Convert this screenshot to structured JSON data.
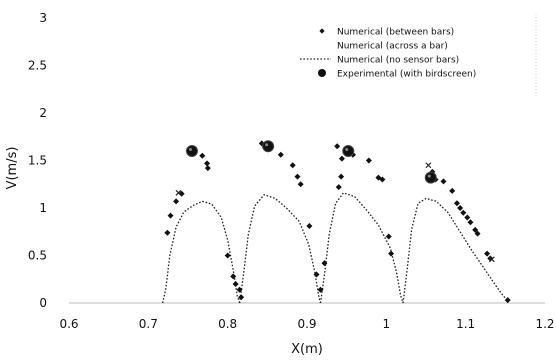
{
  "chart_data": {
    "type": "scatter",
    "xlabel": "X(m)",
    "ylabel": "V(m/s)",
    "xlim": [
      0.6,
      1.2
    ],
    "ylim": [
      0,
      3
    ],
    "xticks": [
      "0.6",
      "0.7",
      "0.8",
      "0.9",
      "1",
      "1.1",
      "1.2"
    ],
    "yticks": [
      "0",
      "0.5",
      "1",
      "1.5",
      "2",
      "2.5",
      "3"
    ],
    "grid": false,
    "legend_position": "top-right",
    "series": [
      {
        "name": "Numerical (between bars)",
        "marker": "diamond",
        "color": "#111111",
        "points": [
          [
            0.724,
            0.74
          ],
          [
            0.728,
            0.92
          ],
          [
            0.735,
            1.07
          ],
          [
            0.742,
            1.15
          ],
          [
            0.768,
            1.55
          ],
          [
            0.774,
            1.47
          ],
          [
            0.775,
            1.42
          ],
          [
            0.8,
            0.5
          ],
          [
            0.807,
            0.28
          ],
          [
            0.81,
            0.2
          ],
          [
            0.815,
            0.14
          ],
          [
            0.817,
            0.06
          ],
          [
            0.843,
            1.68
          ],
          [
            0.849,
            1.64
          ],
          [
            0.855,
            1.64
          ],
          [
            0.867,
            1.56
          ],
          [
            0.882,
            1.45
          ],
          [
            0.888,
            1.33
          ],
          [
            0.892,
            1.25
          ],
          [
            0.903,
            0.81
          ],
          [
            0.912,
            0.3
          ],
          [
            0.917,
            0.14
          ],
          [
            0.922,
            0.42
          ],
          [
            0.938,
            1.65
          ],
          [
            0.94,
            1.22
          ],
          [
            0.943,
            1.33
          ],
          [
            0.944,
            1.52
          ],
          [
            0.958,
            1.56
          ],
          [
            0.978,
            1.5
          ],
          [
            0.99,
            1.32
          ],
          [
            0.995,
            1.3
          ],
          [
            1.003,
            0.7
          ],
          [
            1.006,
            0.52
          ],
          [
            1.058,
            1.38
          ],
          [
            1.062,
            1.3
          ],
          [
            1.072,
            1.28
          ],
          [
            1.083,
            1.18
          ],
          [
            1.089,
            1.05
          ],
          [
            1.093,
            1.0
          ],
          [
            1.097,
            0.95
          ],
          [
            1.102,
            0.9
          ],
          [
            1.106,
            0.85
          ],
          [
            1.112,
            0.77
          ],
          [
            1.115,
            0.73
          ],
          [
            1.127,
            0.52
          ],
          [
            1.131,
            0.47
          ],
          [
            1.153,
            0.03
          ]
        ]
      },
      {
        "name": "Numerical (across a bar)",
        "marker": "none",
        "color": "#111111",
        "points": []
      },
      {
        "name": "Numerical (no sensor bars)",
        "marker": "dotted-line",
        "color": "#222222",
        "segments": [
          [
            [
              0.718,
              0.0
            ],
            [
              0.722,
              0.15
            ],
            [
              0.727,
              0.5
            ],
            [
              0.735,
              0.8
            ],
            [
              0.745,
              0.96
            ],
            [
              0.757,
              1.03
            ],
            [
              0.768,
              1.07
            ],
            [
              0.78,
              1.04
            ],
            [
              0.792,
              0.9
            ],
            [
              0.8,
              0.66
            ],
            [
              0.807,
              0.35
            ],
            [
              0.812,
              0.08
            ],
            [
              0.815,
              0.0
            ]
          ],
          [
            [
              0.815,
              0.0
            ],
            [
              0.82,
              0.3
            ],
            [
              0.826,
              0.72
            ],
            [
              0.834,
              1.02
            ],
            [
              0.846,
              1.14
            ],
            [
              0.86,
              1.1
            ],
            [
              0.874,
              1.0
            ],
            [
              0.89,
              0.86
            ],
            [
              0.902,
              0.62
            ],
            [
              0.91,
              0.32
            ],
            [
              0.915,
              0.06
            ],
            [
              0.917,
              0.0
            ]
          ],
          [
            [
              0.917,
              0.0
            ],
            [
              0.922,
              0.3
            ],
            [
              0.928,
              0.72
            ],
            [
              0.936,
              1.05
            ],
            [
              0.946,
              1.16
            ],
            [
              0.96,
              1.12
            ],
            [
              0.975,
              0.98
            ],
            [
              0.99,
              0.82
            ],
            [
              1.005,
              0.58
            ],
            [
              1.013,
              0.32
            ],
            [
              1.018,
              0.08
            ],
            [
              1.021,
              0.0
            ]
          ],
          [
            [
              1.021,
              0.0
            ],
            [
              1.026,
              0.34
            ],
            [
              1.032,
              0.78
            ],
            [
              1.04,
              1.05
            ],
            [
              1.05,
              1.1
            ],
            [
              1.063,
              1.07
            ],
            [
              1.078,
              0.95
            ],
            [
              1.093,
              0.75
            ],
            [
              1.108,
              0.55
            ],
            [
              1.122,
              0.38
            ],
            [
              1.135,
              0.22
            ],
            [
              1.145,
              0.1
            ],
            [
              1.153,
              0.02
            ]
          ]
        ]
      },
      {
        "name": "Experimental (with birdscreen)",
        "marker": "circle",
        "color": "#111111",
        "points": [
          [
            0.755,
            1.6
          ],
          [
            0.851,
            1.65
          ],
          [
            0.952,
            1.6
          ],
          [
            1.056,
            1.32
          ]
        ]
      }
    ],
    "extra_marks": {
      "crosses": [
        [
          0.738,
          1.16
        ],
        [
          1.053,
          1.45
        ],
        [
          1.133,
          0.46
        ]
      ]
    }
  }
}
